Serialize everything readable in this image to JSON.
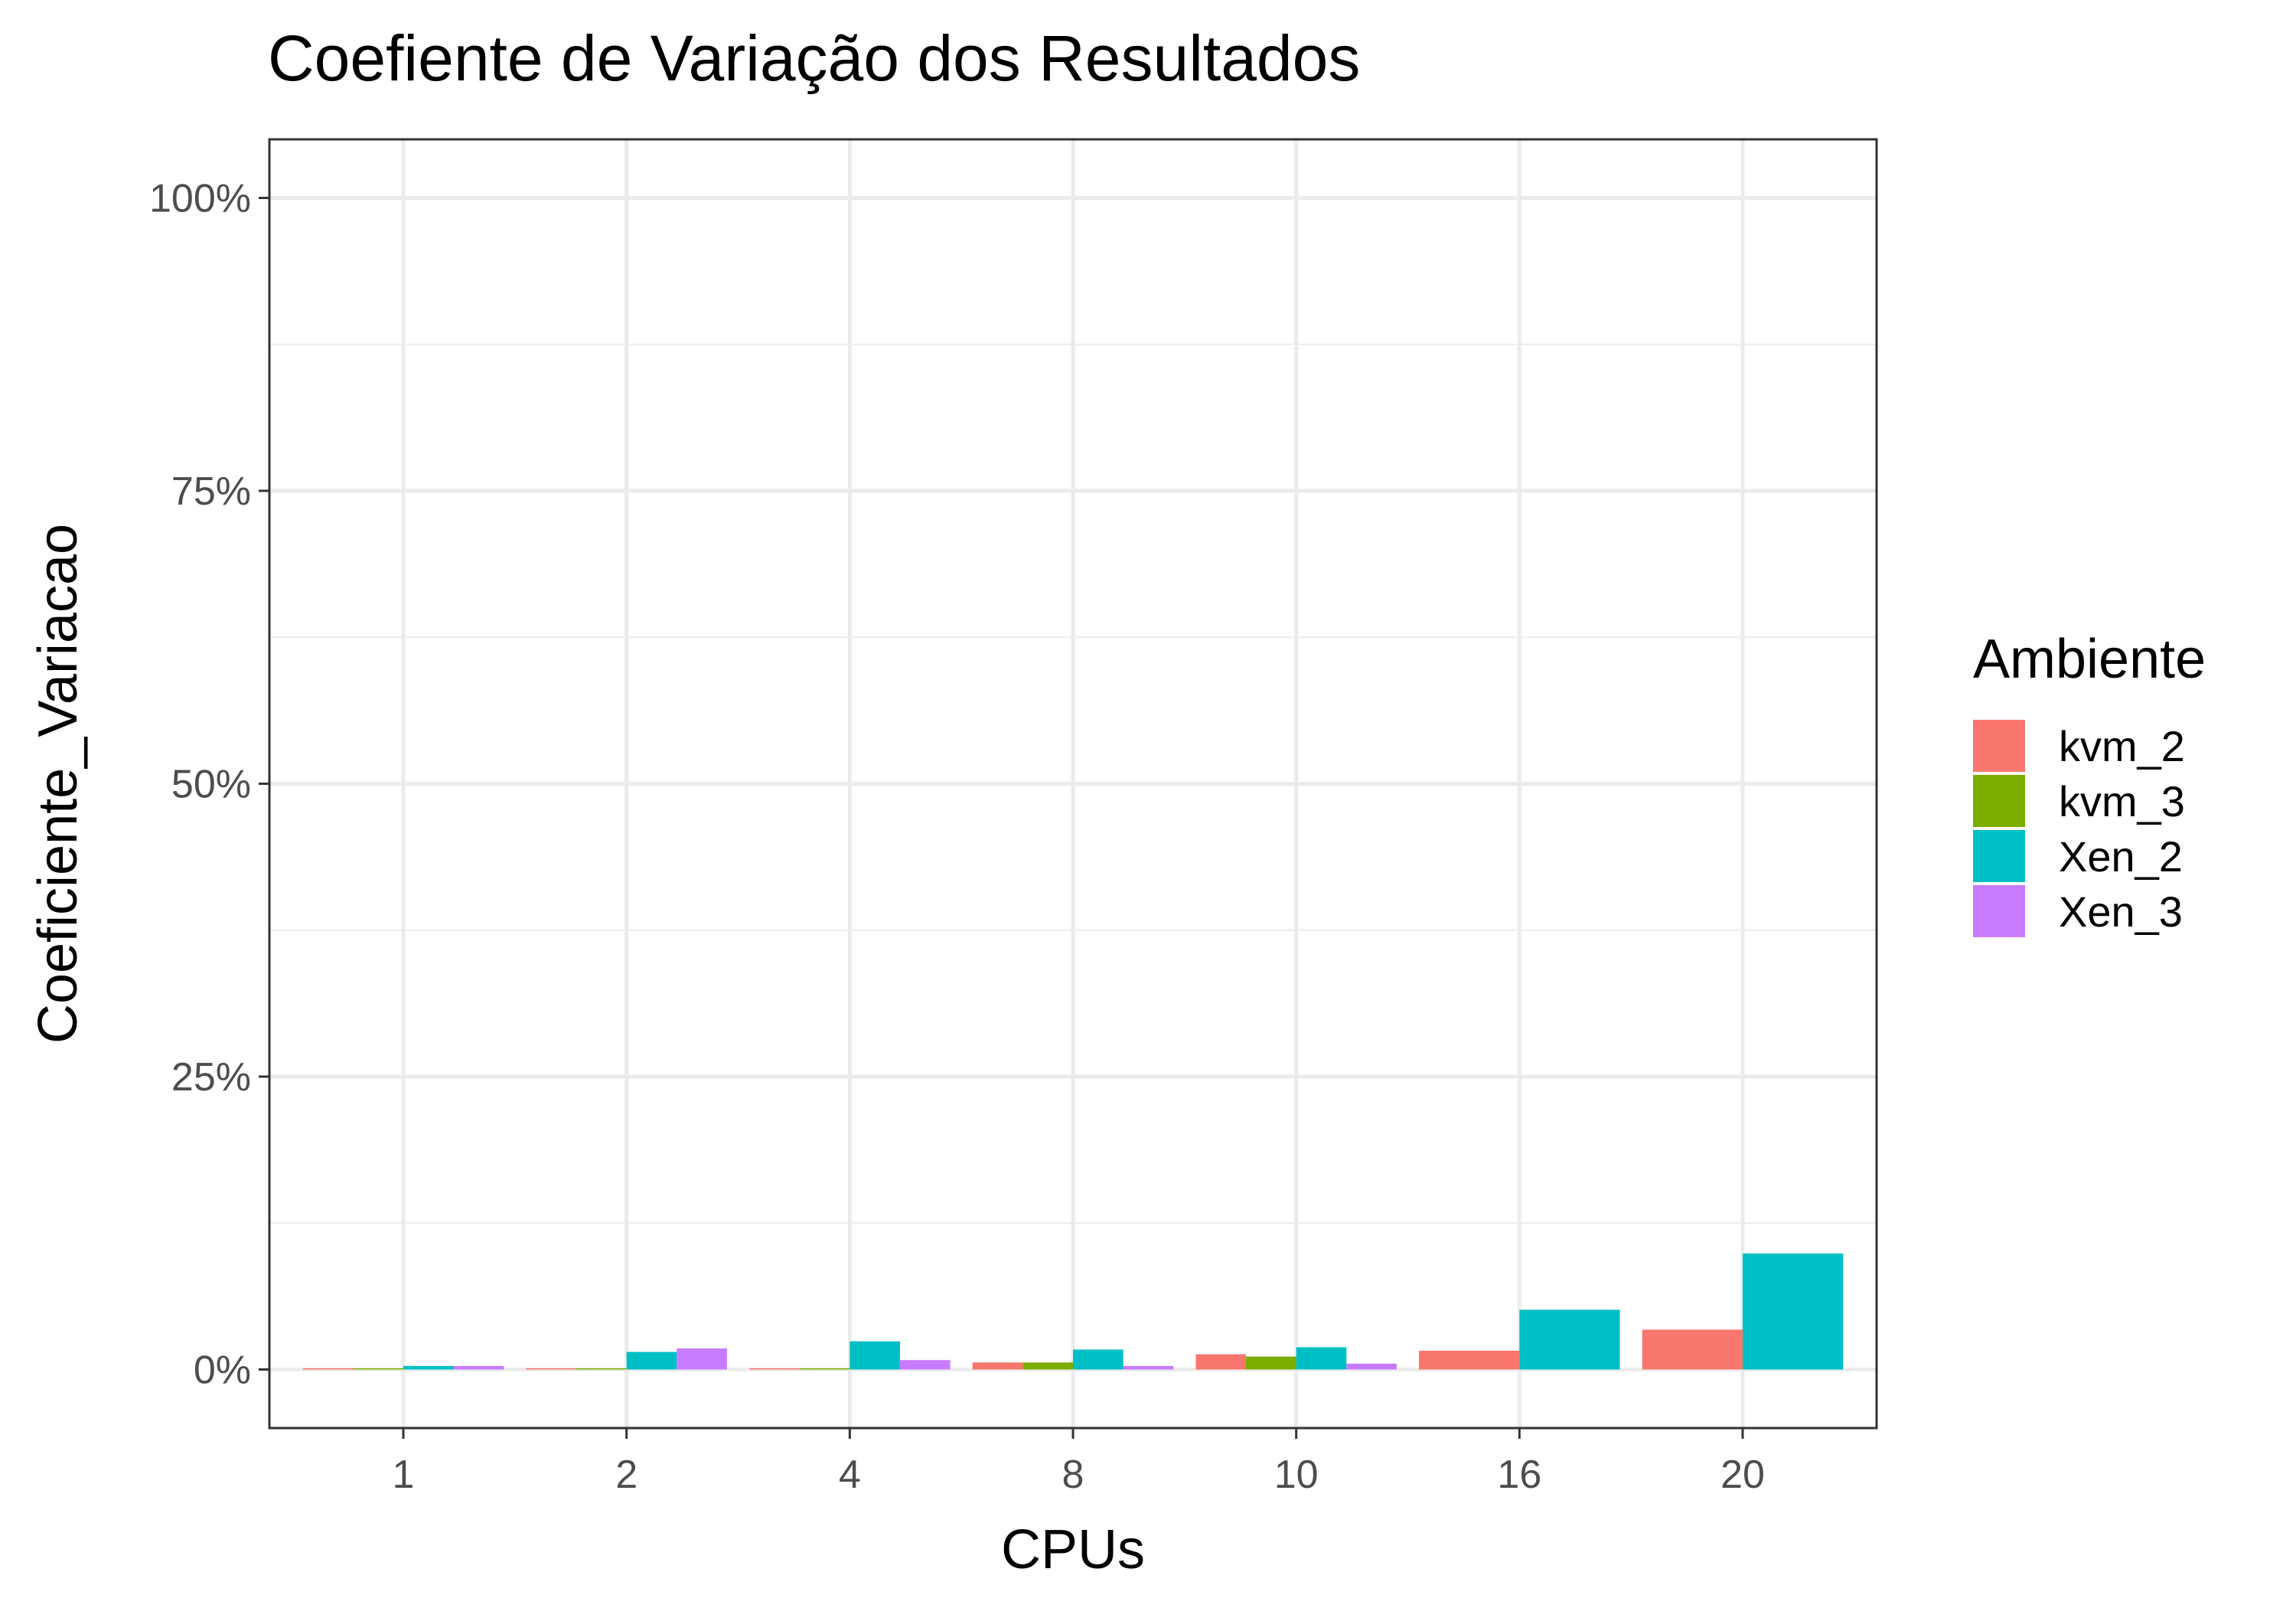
{
  "chart_data": {
    "type": "bar",
    "title": "Coefiente de Variação dos Resultados",
    "xlabel": "CPUs",
    "ylabel": "Coeficiente_Variacao",
    "categories": [
      "1",
      "2",
      "4",
      "8",
      "10",
      "16",
      "20"
    ],
    "y_ticks": [
      "0%",
      "25%",
      "50%",
      "75%",
      "100%"
    ],
    "ylim": [
      -0.05,
      1.05
    ],
    "y_tick_values": [
      0,
      0.25,
      0.5,
      0.75,
      1.0
    ],
    "grid": true,
    "legend": {
      "title": "Ambiente",
      "position": "right"
    },
    "series": [
      {
        "name": "kvm_2",
        "color": "#F8766D",
        "values": [
          0.001,
          0.001,
          0.001,
          0.006,
          0.013,
          0.016,
          0.034
        ]
      },
      {
        "name": "kvm_3",
        "color": "#7CAE00",
        "values": [
          0.001,
          0.001,
          0.001,
          0.006,
          0.011,
          null,
          null
        ]
      },
      {
        "name": "Xen_2",
        "color": "#00BFC4",
        "values": [
          0.003,
          0.015,
          0.024,
          0.017,
          0.019,
          0.051,
          0.099
        ]
      },
      {
        "name": "Xen_3",
        "color": "#C77CFF",
        "values": [
          0.003,
          0.018,
          0.008,
          0.003,
          0.005,
          null,
          null
        ]
      }
    ]
  }
}
